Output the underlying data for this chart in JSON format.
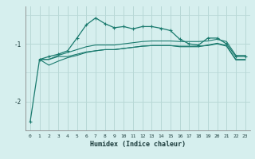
{
  "xlabel": "Humidex (Indice chaleur)",
  "background_color": "#d6efee",
  "grid_color_major": "#b8d8d6",
  "grid_color_minor": "#c8e4e2",
  "line_color": "#1a7a6e",
  "xlim": [
    -0.5,
    23.5
  ],
  "ylim": [
    -2.5,
    -0.35
  ],
  "yticks": [
    -2,
    -1
  ],
  "xticks": [
    0,
    1,
    2,
    3,
    4,
    5,
    6,
    7,
    8,
    9,
    10,
    11,
    12,
    13,
    14,
    15,
    16,
    17,
    18,
    19,
    20,
    21,
    22,
    23
  ],
  "curve1_x": [
    0,
    1,
    2,
    3,
    4,
    5,
    6,
    7,
    8,
    9,
    10,
    11,
    12,
    13,
    14,
    15,
    16,
    17,
    18,
    19,
    20,
    21,
    22,
    23
  ],
  "curve1_y": [
    -2.35,
    -1.27,
    -1.22,
    -1.18,
    -1.12,
    -0.9,
    -0.67,
    -0.55,
    -0.65,
    -0.72,
    -0.7,
    -0.74,
    -0.7,
    -0.7,
    -0.73,
    -0.77,
    -0.92,
    -1.0,
    -1.02,
    -0.9,
    -0.9,
    -1.0,
    -1.22,
    -1.22
  ],
  "curve2_x": [
    1,
    2,
    3,
    4,
    5,
    6,
    7,
    8,
    9,
    10,
    11,
    12,
    13,
    14,
    15,
    16,
    17,
    18,
    19,
    20,
    21,
    22,
    23
  ],
  "curve2_y": [
    -1.27,
    -1.27,
    -1.2,
    -1.15,
    -1.1,
    -1.05,
    -1.02,
    -1.02,
    -1.02,
    -1.0,
    -0.98,
    -0.96,
    -0.95,
    -0.95,
    -0.95,
    -0.96,
    -0.96,
    -0.96,
    -0.95,
    -0.92,
    -0.96,
    -1.2,
    -1.2
  ],
  "curve3_x": [
    1,
    2,
    3,
    4,
    5,
    6,
    7,
    8,
    9,
    10,
    11,
    12,
    13,
    14,
    15,
    16,
    17,
    18,
    19,
    20,
    21,
    22,
    23
  ],
  "curve3_y": [
    -1.27,
    -1.37,
    -1.3,
    -1.24,
    -1.2,
    -1.15,
    -1.12,
    -1.1,
    -1.1,
    -1.08,
    -1.06,
    -1.04,
    -1.03,
    -1.03,
    -1.03,
    -1.04,
    -1.04,
    -1.04,
    -1.03,
    -1.0,
    -1.04,
    -1.28,
    -1.28
  ],
  "curve4_x": [
    1,
    2,
    3,
    4,
    5,
    6,
    7,
    8,
    9,
    10,
    11,
    12,
    13,
    14,
    15,
    16,
    17,
    18,
    19,
    20,
    21,
    22,
    23
  ],
  "curve4_y": [
    -1.27,
    -1.27,
    -1.22,
    -1.22,
    -1.18,
    -1.14,
    -1.12,
    -1.1,
    -1.1,
    -1.08,
    -1.06,
    -1.04,
    -1.03,
    -1.03,
    -1.03,
    -1.05,
    -1.05,
    -1.05,
    -1.02,
    -0.99,
    -1.03,
    -1.27,
    -1.27
  ]
}
